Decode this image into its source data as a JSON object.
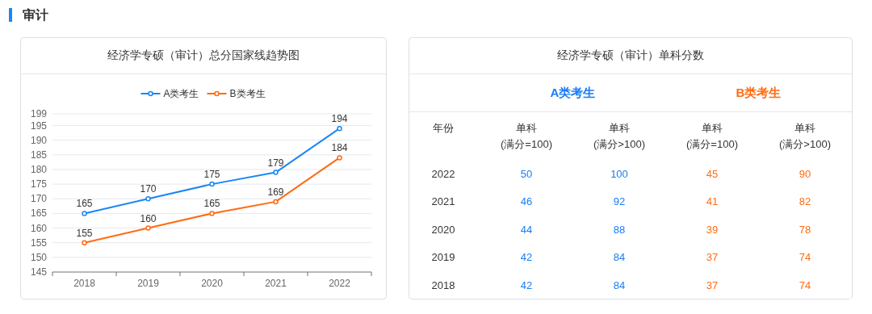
{
  "chart_data": [
    {
      "type": "line",
      "title": "经济学专硕（审计）总分国家线趋势图",
      "annotations": [
        "审计"
      ],
      "categories": [
        "2018",
        "2019",
        "2020",
        "2021",
        "2022"
      ],
      "series": [
        {
          "name": "A类考生",
          "color": "#1a87f5",
          "values": [
            165,
            170,
            175,
            179,
            194
          ]
        },
        {
          "name": "B类考生",
          "color": "#ff6b12",
          "values": [
            155,
            160,
            165,
            169,
            184
          ]
        }
      ],
      "ylim": [
        145,
        199
      ],
      "yticks": [
        145,
        150,
        155,
        160,
        165,
        170,
        175,
        180,
        185,
        190,
        195,
        199
      ],
      "grid": "y",
      "legend": "top",
      "marker": "circle",
      "data_labels": true
    },
    {
      "type": "heatmap",
      "title": "经济学专硕（审计）单科分数",
      "annotations": [
        "年份",
        "A类考生",
        "B类考生"
      ],
      "categories": [
        "单科\n(满分=100)",
        "单科\n(满分>100)",
        "单科\n(满分=100)",
        "单科\n(满分>100)"
      ],
      "colors": [
        "#1a7cf5",
        "#1a7cf5",
        "#ff6b12",
        "#ff6b12"
      ],
      "y_categories": [
        "2022",
        "2021",
        "2020",
        "2019",
        "2018"
      ],
      "cells": [
        [
          50,
          100,
          45,
          90
        ],
        [
          46,
          92,
          41,
          82
        ],
        [
          44,
          88,
          39,
          78
        ],
        [
          42,
          84,
          37,
          74
        ],
        [
          42,
          84,
          37,
          74
        ]
      ],
      "data_labels": true
    }
  ]
}
